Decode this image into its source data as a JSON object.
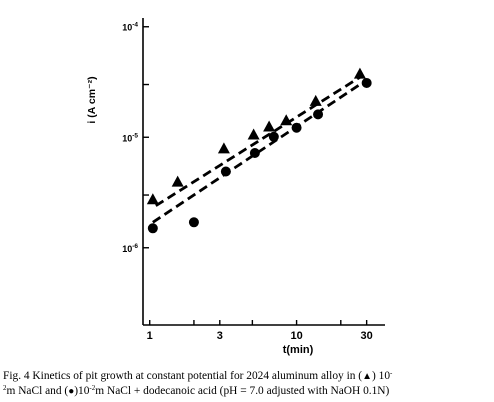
{
  "chart_data": {
    "type": "scatter",
    "x_scale": "log",
    "y_scale": "log",
    "xlim": [
      0.9,
      40
    ],
    "ylim": [
      2e-07,
      0.00012
    ],
    "xlabel": "t(min)",
    "ylabel": "i (A cm⁻²)",
    "x_ticks": [
      {
        "value": 1,
        "label": "1"
      },
      {
        "value": 2,
        "label": ""
      },
      {
        "value": 3,
        "label": "3"
      },
      {
        "value": 5,
        "label": ""
      },
      {
        "value": 10,
        "label": "10"
      },
      {
        "value": 20,
        "label": ""
      },
      {
        "value": 30,
        "label": "30"
      }
    ],
    "y_ticks": [
      {
        "value": 0.0001,
        "base": "10",
        "exp": "-4"
      },
      {
        "value": 3e-05,
        "base": "",
        "exp": ""
      },
      {
        "value": 1e-05,
        "base": "10",
        "exp": "-5"
      },
      {
        "value": 3e-06,
        "base": "",
        "exp": ""
      },
      {
        "value": 1e-06,
        "base": "10",
        "exp": "-6"
      }
    ],
    "grid": false,
    "series": [
      {
        "marker": "triangle",
        "x": [
          1.05,
          1.55,
          3.2,
          5.1,
          6.5,
          8.5,
          13.5,
          27
        ],
        "y": [
          2.7e-06,
          3.9e-06,
          7.8e-06,
          1.04e-05,
          1.23e-05,
          1.4e-05,
          2.1e-05,
          3.7e-05
        ],
        "fit": {
          "x": [
            1.1,
            28
          ],
          "y": [
            2.4e-06,
            3.6e-05
          ]
        }
      },
      {
        "marker": "circle",
        "x": [
          1.05,
          2.0,
          3.3,
          5.2,
          7.0,
          10.0,
          14.0,
          30
        ],
        "y": [
          1.5e-06,
          1.7e-06,
          4.9e-06,
          7.2e-06,
          1.01e-05,
          1.22e-05,
          1.61e-05,
          3.1e-05
        ],
        "fit": {
          "x": [
            1.05,
            28
          ],
          "y": [
            1.7e-06,
            3.1e-05
          ]
        }
      }
    ]
  },
  "caption": {
    "line1_pre": "Fig. 4  Kinetics of pit growth at constant potential for 2024 aluminum alloy in (",
    "triangle_symbol": "▲",
    "line1_mid": ") 10",
    "sup1": "-",
    "line2_sup": "2",
    "line2_a": "m NaCl and (",
    "circle_symbol": "●",
    "line2_b": ")10",
    "sup2": "-2",
    "line2_c": "m NaCl + dodecanoic acid (pH = 7.0 adjusted with NaOH 0.1N)"
  }
}
